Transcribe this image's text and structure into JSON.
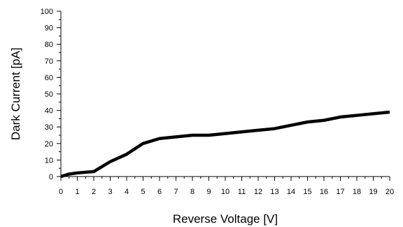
{
  "chart_data": {
    "type": "line",
    "title": "",
    "xlabel": "Reverse Voltage [V]",
    "ylabel": "Dark Current [pA]",
    "xlim": [
      0,
      20
    ],
    "ylim": [
      0,
      100
    ],
    "xticks": [
      0,
      1,
      2,
      3,
      4,
      5,
      6,
      7,
      8,
      9,
      10,
      11,
      12,
      13,
      14,
      15,
      16,
      17,
      18,
      19,
      20
    ],
    "yticks": [
      0,
      10,
      20,
      30,
      40,
      50,
      60,
      70,
      80,
      90,
      100
    ],
    "grid": false,
    "series": [
      {
        "x": [
          0,
          0.5,
          1,
          2,
          3,
          4,
          5,
          6,
          7,
          8,
          9,
          10,
          11,
          12,
          13,
          14,
          15,
          16,
          17,
          18,
          19,
          20
        ],
        "y": [
          0,
          1.5,
          2.2,
          3,
          9,
          13.5,
          20,
          23,
          24,
          25,
          25,
          26,
          27,
          28,
          29,
          31,
          33,
          34,
          36,
          37,
          38,
          39
        ]
      }
    ],
    "line_color": "#000000"
  }
}
